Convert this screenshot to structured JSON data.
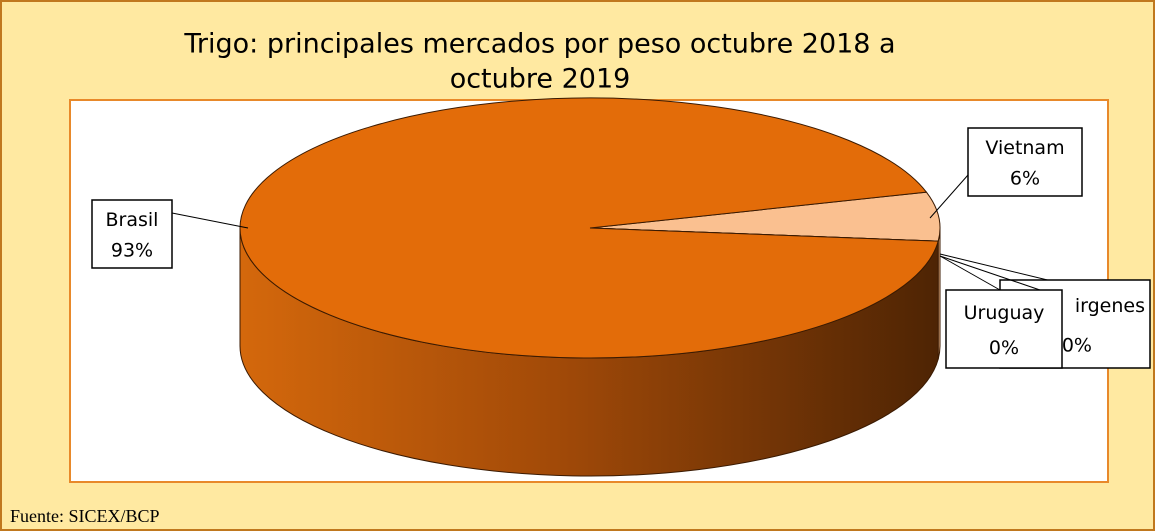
{
  "chart_data": {
    "type": "pie",
    "title": "Trigo: principales mercados por peso octubre 2018 a octubre 2019",
    "categories": [
      "Vietnam",
      "Uruguay",
      "irgenes",
      "Brasil"
    ],
    "values": [
      6,
      0,
      0,
      93
    ],
    "value_labels": [
      "6%",
      "0%",
      "0%",
      "93%"
    ],
    "colors": [
      "#FAC090",
      "#FDE9D9",
      "#FFF5EE",
      "#E36C09"
    ],
    "source": "Fuente: SICEX/BCP"
  }
}
